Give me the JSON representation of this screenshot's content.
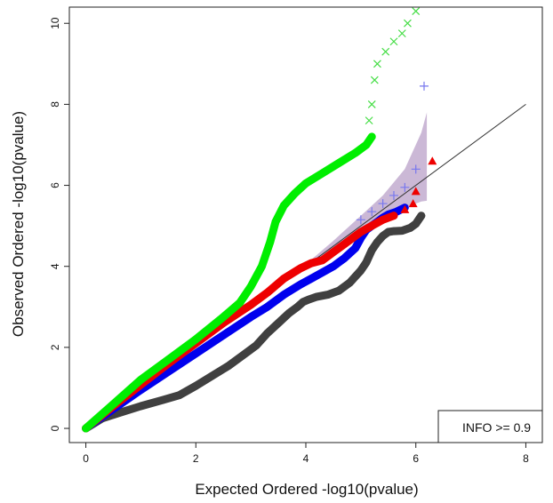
{
  "chart_data": {
    "type": "scatter",
    "title": "",
    "xlabel": "Expected Ordered -log10(pvalue)",
    "ylabel": "Observed Ordered -log10(pvalue)",
    "xlim": [
      -0.3,
      8.3
    ],
    "ylim": [
      -0.35,
      10.4
    ],
    "x_ticks": [
      "0",
      "2",
      "4",
      "6",
      "8"
    ],
    "y_ticks": [
      "0",
      "2",
      "4",
      "6",
      "8",
      "10"
    ],
    "grid": false,
    "legend": {
      "position": "bottom-right",
      "label": "INFO >= 0.9"
    },
    "reference_line": {
      "x": [
        0,
        8
      ],
      "y": [
        0,
        8
      ],
      "color": "#333333"
    },
    "confidence_band": {
      "color": "#b9a0c8",
      "x": [
        4.0,
        4.5,
        5.0,
        5.4,
        5.8,
        6.1,
        6.2
      ],
      "lower": [
        3.97,
        4.42,
        4.85,
        5.16,
        5.45,
        5.6,
        5.62
      ],
      "upper": [
        4.05,
        4.63,
        5.25,
        5.75,
        6.4,
        7.3,
        7.8
      ]
    },
    "series": [
      {
        "color": "#404040",
        "marker": "circle",
        "points": [
          [
            0,
            0
          ],
          [
            0.3,
            0.25
          ],
          [
            0.6,
            0.38
          ],
          [
            1.0,
            0.55
          ],
          [
            1.4,
            0.7
          ],
          [
            1.7,
            0.82
          ],
          [
            2.0,
            1.05
          ],
          [
            2.3,
            1.3
          ],
          [
            2.6,
            1.55
          ],
          [
            2.9,
            1.85
          ],
          [
            3.1,
            2.05
          ],
          [
            3.3,
            2.35
          ],
          [
            3.5,
            2.6
          ],
          [
            3.7,
            2.85
          ],
          [
            3.85,
            3.0
          ],
          [
            3.95,
            3.12
          ],
          [
            4.05,
            3.18
          ],
          [
            4.2,
            3.25
          ],
          [
            4.4,
            3.3
          ],
          [
            4.6,
            3.4
          ],
          [
            4.8,
            3.6
          ],
          [
            4.9,
            3.75
          ],
          [
            5.0,
            3.9
          ],
          [
            5.1,
            4.1
          ],
          [
            5.2,
            4.4
          ],
          [
            5.3,
            4.6
          ],
          [
            5.4,
            4.75
          ],
          [
            5.5,
            4.85
          ],
          [
            5.6,
            4.87
          ],
          [
            5.75,
            4.88
          ],
          [
            5.9,
            4.95
          ],
          [
            6.0,
            5.05
          ],
          [
            6.1,
            5.25
          ]
        ]
      },
      {
        "color": "#0000ee",
        "marker": "circle",
        "points": [
          [
            0,
            0
          ],
          [
            0.5,
            0.48
          ],
          [
            1.0,
            0.95
          ],
          [
            1.5,
            1.4
          ],
          [
            2.0,
            1.85
          ],
          [
            2.5,
            2.3
          ],
          [
            3.0,
            2.75
          ],
          [
            3.3,
            3.0
          ],
          [
            3.6,
            3.3
          ],
          [
            3.9,
            3.55
          ],
          [
            4.1,
            3.7
          ],
          [
            4.3,
            3.85
          ],
          [
            4.5,
            4.0
          ],
          [
            4.7,
            4.2
          ],
          [
            4.9,
            4.45
          ],
          [
            5.0,
            4.7
          ],
          [
            5.1,
            4.9
          ],
          [
            5.2,
            5.0
          ],
          [
            5.3,
            5.1
          ],
          [
            5.4,
            5.2
          ],
          [
            5.5,
            5.28
          ],
          [
            5.65,
            5.35
          ],
          [
            5.8,
            5.45
          ]
        ]
      },
      {
        "color": "#7777ee",
        "marker": "plus",
        "points": [
          [
            5.0,
            5.15
          ],
          [
            5.2,
            5.35
          ],
          [
            5.4,
            5.55
          ],
          [
            5.6,
            5.75
          ],
          [
            5.8,
            5.95
          ],
          [
            6.0,
            6.4
          ],
          [
            6.15,
            8.45
          ]
        ]
      },
      {
        "color": "#ee0000",
        "marker": "circle",
        "points": [
          [
            0,
            0
          ],
          [
            0.5,
            0.55
          ],
          [
            1.0,
            1.08
          ],
          [
            1.5,
            1.6
          ],
          [
            2.0,
            2.1
          ],
          [
            2.5,
            2.6
          ],
          [
            3.0,
            3.05
          ],
          [
            3.3,
            3.35
          ],
          [
            3.6,
            3.7
          ],
          [
            3.9,
            3.95
          ],
          [
            4.1,
            4.08
          ],
          [
            4.3,
            4.15
          ],
          [
            4.5,
            4.35
          ],
          [
            4.7,
            4.55
          ],
          [
            4.9,
            4.75
          ],
          [
            5.0,
            4.85
          ],
          [
            5.2,
            5.0
          ],
          [
            5.4,
            5.15
          ],
          [
            5.6,
            5.25
          ]
        ]
      },
      {
        "color": "#ee0000",
        "marker": "triangle",
        "points": [
          [
            5.8,
            5.4
          ],
          [
            5.95,
            5.55
          ],
          [
            6.0,
            5.85
          ],
          [
            6.3,
            6.6
          ]
        ]
      },
      {
        "color": "#00ee00",
        "marker": "circle",
        "points": [
          [
            0,
            0
          ],
          [
            0.5,
            0.6
          ],
          [
            1.0,
            1.2
          ],
          [
            1.5,
            1.7
          ],
          [
            2.0,
            2.2
          ],
          [
            2.5,
            2.75
          ],
          [
            2.8,
            3.1
          ],
          [
            3.0,
            3.5
          ],
          [
            3.2,
            4.0
          ],
          [
            3.35,
            4.6
          ],
          [
            3.45,
            5.1
          ],
          [
            3.6,
            5.5
          ],
          [
            3.8,
            5.8
          ],
          [
            4.0,
            6.05
          ],
          [
            4.3,
            6.3
          ],
          [
            4.6,
            6.55
          ],
          [
            4.9,
            6.8
          ],
          [
            5.1,
            7.0
          ],
          [
            5.2,
            7.2
          ]
        ]
      },
      {
        "color": "#44dd44",
        "marker": "x",
        "points": [
          [
            5.15,
            7.6
          ],
          [
            5.2,
            8.0
          ],
          [
            5.25,
            8.6
          ],
          [
            5.3,
            9.0
          ],
          [
            5.45,
            9.3
          ],
          [
            5.6,
            9.55
          ],
          [
            5.75,
            9.75
          ],
          [
            5.85,
            10.0
          ],
          [
            6.0,
            10.3
          ]
        ]
      }
    ]
  }
}
